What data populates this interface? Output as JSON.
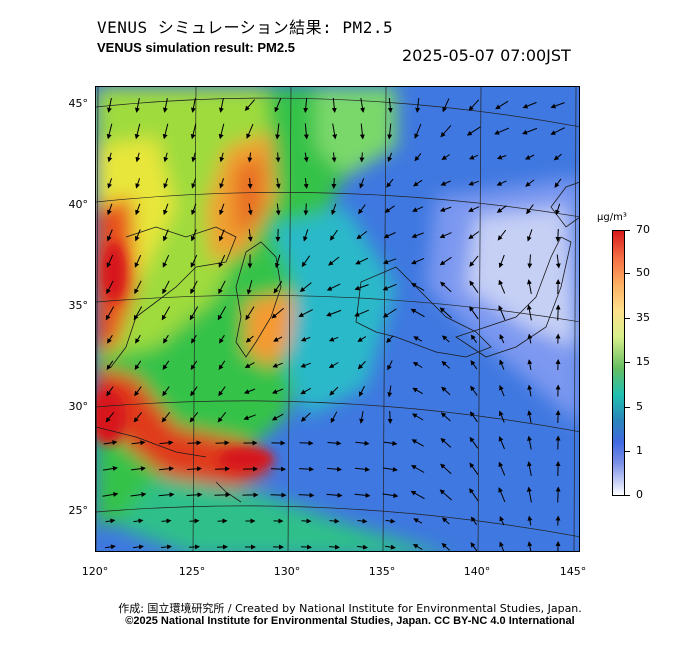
{
  "header": {
    "title_ja": "VENUS シミュレーション結果: PM2.5",
    "title_en": "VENUS simulation result: PM2.5",
    "timestamp": "2025-05-07 07:00JST"
  },
  "map": {
    "latitude_labels": [
      "45°",
      "40°",
      "35°",
      "30°",
      "25°"
    ],
    "longitude_labels": [
      "120°",
      "125°",
      "130°",
      "135°",
      "140°",
      "145°"
    ]
  },
  "colorbar": {
    "unit": "μg/m³",
    "tick_labels": [
      "70",
      "50",
      "35",
      "15",
      "5",
      "1",
      "0"
    ],
    "colors": {
      "high": "#d7191c",
      "mid_high": "#fdae61",
      "mid": "#66bd63",
      "low_mid": "#2b83ba",
      "low": "#4169e1",
      "zero": "#ffffff"
    }
  },
  "footer": {
    "credit_ja": "作成: 国立環境研究所 / Created by National Institute for Environmental Studies, Japan.",
    "credit_en": "©2025 National Institute for Environmental Studies, Japan. CC BY-NC 4.0 International"
  }
}
